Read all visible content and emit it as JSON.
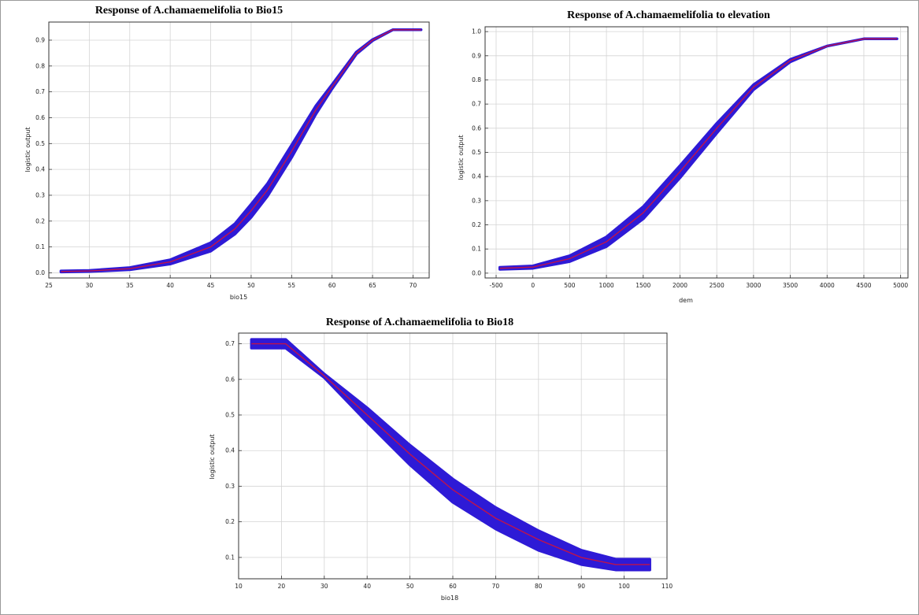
{
  "chart_data": [
    {
      "type": "line",
      "title": "Response of A.chamaemelifolia to Bio15",
      "xlabel": "bio15",
      "ylabel": "logistic output",
      "xlim": [
        25,
        72
      ],
      "ylim": [
        -0.02,
        0.97
      ],
      "xticks": [
        25,
        30,
        35,
        40,
        45,
        50,
        55,
        60,
        65,
        70
      ],
      "xtick_labels": [
        "25",
        "30",
        "35",
        "40",
        "45",
        "50",
        "55",
        "60",
        "65",
        "70"
      ],
      "yticks": [
        0.0,
        0.1,
        0.2,
        0.3,
        0.4,
        0.5,
        0.6,
        0.7,
        0.8,
        0.9
      ],
      "ytick_labels": [
        "0.0",
        "0.1",
        "0.2",
        "0.3",
        "0.4",
        "0.5",
        "0.6",
        "0.7",
        "0.8",
        "0.9"
      ],
      "grid": true,
      "series": [
        {
          "color": "#c0134a",
          "x": [
            26.5,
            30,
            35,
            40,
            45,
            48,
            50,
            52,
            55,
            58,
            60,
            63,
            65,
            67.5,
            71
          ],
          "y": [
            0.005,
            0.007,
            0.016,
            0.042,
            0.1,
            0.17,
            0.24,
            0.32,
            0.47,
            0.63,
            0.72,
            0.85,
            0.9,
            0.94,
            0.94
          ]
        }
      ],
      "band": {
        "color": "#2e1ad6",
        "x": [
          26.5,
          30,
          35,
          40,
          45,
          48,
          50,
          52,
          55,
          58,
          60,
          63,
          65,
          67.5,
          71
        ],
        "lower": [
          0.003,
          0.005,
          0.012,
          0.034,
          0.084,
          0.15,
          0.215,
          0.296,
          0.446,
          0.614,
          0.712,
          0.846,
          0.898,
          0.94,
          0.94
        ],
        "upper": [
          0.007,
          0.009,
          0.02,
          0.05,
          0.116,
          0.19,
          0.265,
          0.344,
          0.494,
          0.646,
          0.728,
          0.854,
          0.902,
          0.94,
          0.94
        ]
      }
    },
    {
      "type": "line",
      "title": "Response of A.chamaemelifolia to elevation",
      "xlabel": "dem",
      "ylabel": "logistic output",
      "xlim": [
        -650,
        5100
      ],
      "ylim": [
        -0.02,
        1.02
      ],
      "xticks": [
        -500,
        0,
        500,
        1000,
        1500,
        2000,
        2500,
        3000,
        3500,
        4000,
        4500,
        5000
      ],
      "xtick_labels": [
        "-500",
        "0",
        "500",
        "1000",
        "1500",
        "2000",
        "2500",
        "3000",
        "3500",
        "4000",
        "4500",
        "5000"
      ],
      "yticks": [
        0.0,
        0.1,
        0.2,
        0.3,
        0.4,
        0.5,
        0.6,
        0.7,
        0.8,
        0.9,
        1.0
      ],
      "ytick_labels": [
        "0.0",
        "0.1",
        "0.2",
        "0.3",
        "0.4",
        "0.5",
        "0.6",
        "0.7",
        "0.8",
        "0.9",
        "1.0"
      ],
      "grid": true,
      "series": [
        {
          "color": "#c0134a",
          "x": [
            -450,
            0,
            500,
            1000,
            1500,
            2000,
            2500,
            3000,
            3500,
            4000,
            4500,
            4950
          ],
          "y": [
            0.02,
            0.025,
            0.06,
            0.13,
            0.25,
            0.42,
            0.6,
            0.77,
            0.88,
            0.94,
            0.97,
            0.97
          ]
        }
      ],
      "band": {
        "color": "#2e1ad6",
        "x": [
          -450,
          0,
          500,
          1000,
          1500,
          2000,
          2500,
          3000,
          3500,
          4000,
          4500,
          4950
        ],
        "lower": [
          0.016,
          0.02,
          0.048,
          0.11,
          0.225,
          0.395,
          0.58,
          0.76,
          0.875,
          0.94,
          0.97,
          0.97
        ],
        "upper": [
          0.024,
          0.03,
          0.072,
          0.15,
          0.275,
          0.445,
          0.62,
          0.78,
          0.885,
          0.94,
          0.97,
          0.97
        ]
      }
    },
    {
      "type": "line",
      "title": "Response of A.chamaemelifolia to Bio18",
      "xlabel": "bio18",
      "ylabel": "logistic output",
      "xlim": [
        10,
        110
      ],
      "ylim": [
        0.04,
        0.73
      ],
      "xticks": [
        10,
        20,
        30,
        40,
        50,
        60,
        70,
        80,
        90,
        100,
        110
      ],
      "xtick_labels": [
        "10",
        "20",
        "30",
        "40",
        "50",
        "60",
        "70",
        "80",
        "90",
        "100",
        "110"
      ],
      "yticks": [
        0.1,
        0.2,
        0.3,
        0.4,
        0.5,
        0.6,
        0.7
      ],
      "ytick_labels": [
        "0.1",
        "0.2",
        "0.3",
        "0.4",
        "0.5",
        "0.6",
        "0.7"
      ],
      "grid": true,
      "series": [
        {
          "color": "#c0134a",
          "x": [
            13,
            21,
            30,
            40,
            50,
            60,
            70,
            80,
            90,
            98,
            106
          ],
          "y": [
            0.7,
            0.7,
            0.61,
            0.5,
            0.39,
            0.29,
            0.21,
            0.15,
            0.1,
            0.08,
            0.08
          ]
        }
      ],
      "band": {
        "color": "#2e1ad6",
        "x": [
          13,
          21,
          30,
          40,
          50,
          60,
          70,
          80,
          90,
          98,
          106
        ],
        "lower": [
          0.688,
          0.688,
          0.605,
          0.48,
          0.36,
          0.255,
          0.18,
          0.12,
          0.08,
          0.065,
          0.065
        ],
        "upper": [
          0.712,
          0.712,
          0.615,
          0.52,
          0.415,
          0.32,
          0.24,
          0.175,
          0.12,
          0.095,
          0.095
        ]
      }
    }
  ]
}
